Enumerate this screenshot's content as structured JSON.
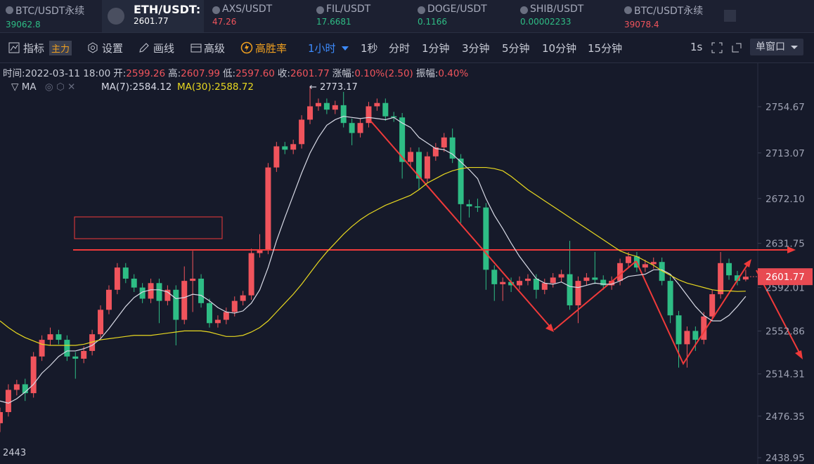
{
  "tabs": [
    {
      "symbol": "BTC/USDT永续",
      "price": "39062.8"
    },
    {
      "symbol": "ETH/USDT:",
      "price": "2601.77"
    },
    {
      "symbol": "AXS/USDT",
      "price": "47.26"
    },
    {
      "symbol": "FIL/USDT",
      "price": "17.6681"
    },
    {
      "symbol": "DOGE/USDT",
      "price": "0.1166"
    },
    {
      "symbol": "SHIB/USDT",
      "price": "0.00002233"
    },
    {
      "symbol": "BTC/USDT永续",
      "price": "39078.4"
    }
  ],
  "toolbar": {
    "indicator": "指标",
    "main": "主力",
    "settings": "设置",
    "draw": "画线",
    "advanced": "高级",
    "win_rate": "高胜率",
    "interval": "1小时",
    "intervals": [
      "1秒",
      "分时",
      "1分钟",
      "3分钟",
      "5分钟",
      "10分钟",
      "15分钟"
    ],
    "speed": "1s",
    "window": "单窗口"
  },
  "info": [
    {
      "label": "时间:",
      "value": "2022-03-11 18:00"
    },
    {
      "label": "开:",
      "value": "2599.26"
    },
    {
      "label": "高:",
      "value": "2607.99"
    },
    {
      "label": "低:",
      "value": "2597.60"
    },
    {
      "label": "收:",
      "value": "2601.77"
    },
    {
      "label": "涨幅:",
      "value": "0.10%(2.50)"
    },
    {
      "label": "振幅:",
      "value": "0.40%"
    }
  ],
  "ma_legend": {
    "title": "MA",
    "items": [
      "MA(7):2584.12",
      "MA(30):2588.72"
    ]
  },
  "chart_data": {
    "type": "candlestick",
    "up_color": "#f0545c",
    "down_color": "#2ebd85",
    "ylim": [
      2433.3,
      2793.8
    ],
    "yticks": [
      2754.67,
      2713.07,
      {
        "value": 2672.1,
        "label": "2672.10"
      },
      2631.75,
      2592.01,
      2552.86,
      2514.31,
      2476.35,
      2438.95
    ],
    "corner_label": "2443",
    "high_mark": "2773.17",
    "candles": [
      [
        2470,
        2484,
        2462,
        2480
      ],
      [
        2480,
        2505,
        2476,
        2500
      ],
      [
        2500,
        2509,
        2495,
        2505
      ],
      [
        2505,
        2510,
        2490,
        2497
      ],
      [
        2497,
        2534,
        2493,
        2530
      ],
      [
        2530,
        2549,
        2526,
        2545
      ],
      [
        2545,
        2556,
        2540,
        2550
      ],
      [
        2550,
        2554,
        2541,
        2545
      ],
      [
        2545,
        2549,
        2526,
        2530
      ],
      [
        2530,
        2534,
        2510,
        2528
      ],
      [
        2528,
        2539,
        2524,
        2535
      ],
      [
        2535,
        2554,
        2531,
        2550
      ],
      [
        2550,
        2576,
        2546,
        2572
      ],
      [
        2572,
        2594,
        2568,
        2590
      ],
      [
        2590,
        2614,
        2586,
        2610
      ],
      [
        2610,
        2614,
        2596,
        2600
      ],
      [
        2600,
        2604,
        2588,
        2592
      ],
      [
        2592,
        2596,
        2578,
        2582
      ],
      [
        2582,
        2600,
        2578,
        2596
      ],
      [
        2596,
        2600,
        2560,
        2580
      ],
      [
        2580,
        2594,
        2576,
        2590
      ],
      [
        2590,
        2594,
        2540,
        2563
      ],
      [
        2563,
        2611,
        2559,
        2598
      ],
      [
        2598,
        2625,
        2570,
        2600
      ],
      [
        2600,
        2604,
        2574,
        2578
      ],
      [
        2578,
        2582,
        2556,
        2560
      ],
      [
        2560,
        2567,
        2556,
        2563
      ],
      [
        2563,
        2574,
        2559,
        2570
      ],
      [
        2570,
        2584,
        2566,
        2580
      ],
      [
        2580,
        2589,
        2576,
        2585
      ],
      [
        2585,
        2627,
        2581,
        2623
      ],
      [
        2623,
        2640,
        2619,
        2626
      ],
      [
        2626,
        2704,
        2622,
        2700
      ],
      [
        2700,
        2723,
        2696,
        2719
      ],
      [
        2719,
        2723,
        2712,
        2716
      ],
      [
        2716,
        2725,
        2712,
        2721
      ],
      [
        2721,
        2747,
        2717,
        2743
      ],
      [
        2743,
        2773.17,
        2739,
        2755
      ],
      [
        2755,
        2762,
        2751,
        2758
      ],
      [
        2758,
        2762,
        2748,
        2752
      ],
      [
        2752,
        2760,
        2748,
        2756
      ],
      [
        2756,
        2768,
        2736,
        2740
      ],
      [
        2740,
        2744,
        2720,
        2731
      ],
      [
        2731,
        2744,
        2727,
        2740
      ],
      [
        2740,
        2759,
        2736,
        2755
      ],
      [
        2755,
        2762,
        2751,
        2758
      ],
      [
        2758,
        2762,
        2742,
        2746
      ],
      [
        2746,
        2750,
        2741,
        2745
      ],
      [
        2745,
        2749,
        2690,
        2705
      ],
      [
        2705,
        2718,
        2701,
        2714
      ],
      [
        2714,
        2718,
        2680,
        2690
      ],
      [
        2690,
        2714,
        2686,
        2710
      ],
      [
        2710,
        2722,
        2706,
        2718
      ],
      [
        2718,
        2731,
        2714,
        2727
      ],
      [
        2727,
        2735,
        2704,
        2708
      ],
      [
        2708,
        2712,
        2650,
        2667
      ],
      [
        2667,
        2671,
        2655,
        2665
      ],
      [
        2665,
        2672,
        2660,
        2664
      ],
      [
        2664,
        2668,
        2590,
        2608
      ],
      [
        2608,
        2612,
        2580,
        2595
      ],
      [
        2595,
        2601,
        2580,
        2597
      ],
      [
        2597,
        2601,
        2588,
        2594
      ],
      [
        2594,
        2602,
        2590,
        2598
      ],
      [
        2598,
        2604,
        2594,
        2600
      ],
      [
        2600,
        2604,
        2582,
        2590
      ],
      [
        2590,
        2600,
        2586,
        2596
      ],
      [
        2596,
        2605,
        2592,
        2601
      ],
      [
        2601,
        2608,
        2597,
        2604
      ],
      [
        2604,
        2634,
        2572,
        2576
      ],
      [
        2576,
        2602,
        2560,
        2598
      ],
      [
        2598,
        2605,
        2594,
        2601
      ],
      [
        2601,
        2624,
        2595,
        2599
      ],
      [
        2599,
        2603,
        2590,
        2594
      ],
      [
        2594,
        2602,
        2590,
        2598
      ],
      [
        2598,
        2618,
        2594,
        2614
      ],
      [
        2614,
        2624,
        2610,
        2620
      ],
      [
        2620,
        2624,
        2606,
        2610
      ],
      [
        2610,
        2617,
        2606,
        2613
      ],
      [
        2613,
        2619,
        2609,
        2615
      ],
      [
        2615,
        2619,
        2594,
        2598
      ],
      [
        2598,
        2602,
        2560,
        2567
      ],
      [
        2567,
        2571,
        2520,
        2541
      ],
      [
        2541,
        2557,
        2520,
        2553
      ],
      [
        2553,
        2557,
        2535,
        2545
      ],
      [
        2545,
        2570,
        2541,
        2566
      ],
      [
        2566,
        2590,
        2562,
        2586
      ],
      [
        2586,
        2624,
        2582,
        2614
      ],
      [
        2614,
        2618,
        2599,
        2603
      ],
      [
        2603,
        2607,
        2594,
        2598
      ],
      [
        2599.26,
        2607.99,
        2597.6,
        2601.77
      ]
    ],
    "series": [
      {
        "name": "MA(7)",
        "color": "#d8dae6",
        "values": [
          2490,
          2488,
          2492,
          2498,
          2505,
          2515,
          2522,
          2530,
          2535,
          2535,
          2537,
          2540,
          2546,
          2555,
          2565,
          2575,
          2583,
          2588,
          2590,
          2590,
          2588,
          2582,
          2583,
          2586,
          2585,
          2580,
          2574,
          2570,
          2569,
          2571,
          2578,
          2590,
          2610,
          2634,
          2655,
          2675,
          2695,
          2713,
          2727,
          2738,
          2743,
          2746,
          2745,
          2744,
          2745,
          2744,
          2743,
          2745,
          2740,
          2736,
          2727,
          2722,
          2717,
          2716,
          2712,
          2705,
          2698,
          2690,
          2672,
          2657,
          2645,
          2632,
          2620,
          2610,
          2600,
          2596,
          2595,
          2597,
          2593,
          2592,
          2594,
          2596,
          2595,
          2595,
          2598,
          2602,
          2603,
          2604,
          2608,
          2608,
          2604,
          2595,
          2585,
          2575,
          2567,
          2562,
          2562,
          2567,
          2575,
          2584.12
        ]
      },
      {
        "name": "MA(30)",
        "color": "#e8d820",
        "values": [
          2562,
          2556,
          2551,
          2547,
          2544,
          2541,
          2540,
          2540,
          2540,
          2540,
          2541,
          2543,
          2545,
          2546,
          2547,
          2548,
          2549,
          2549,
          2549,
          2550,
          2551,
          2552,
          2553,
          2553,
          2553,
          2552,
          2550,
          2548,
          2548,
          2549,
          2552,
          2556,
          2562,
          2570,
          2578,
          2586,
          2595,
          2605,
          2615,
          2624,
          2632,
          2640,
          2647,
          2653,
          2658,
          2662,
          2666,
          2669,
          2672,
          2675,
          2680,
          2686,
          2690,
          2694,
          2697,
          2699,
          2700,
          2700,
          2700,
          2699,
          2697,
          2692,
          2686,
          2680,
          2675,
          2670,
          2665,
          2660,
          2655,
          2650,
          2645,
          2640,
          2635,
          2630,
          2625,
          2622,
          2620,
          2616,
          2612,
          2607,
          2603,
          2599,
          2596,
          2594,
          2592,
          2590,
          2589,
          2589,
          2588.5,
          2588.72
        ]
      }
    ]
  }
}
